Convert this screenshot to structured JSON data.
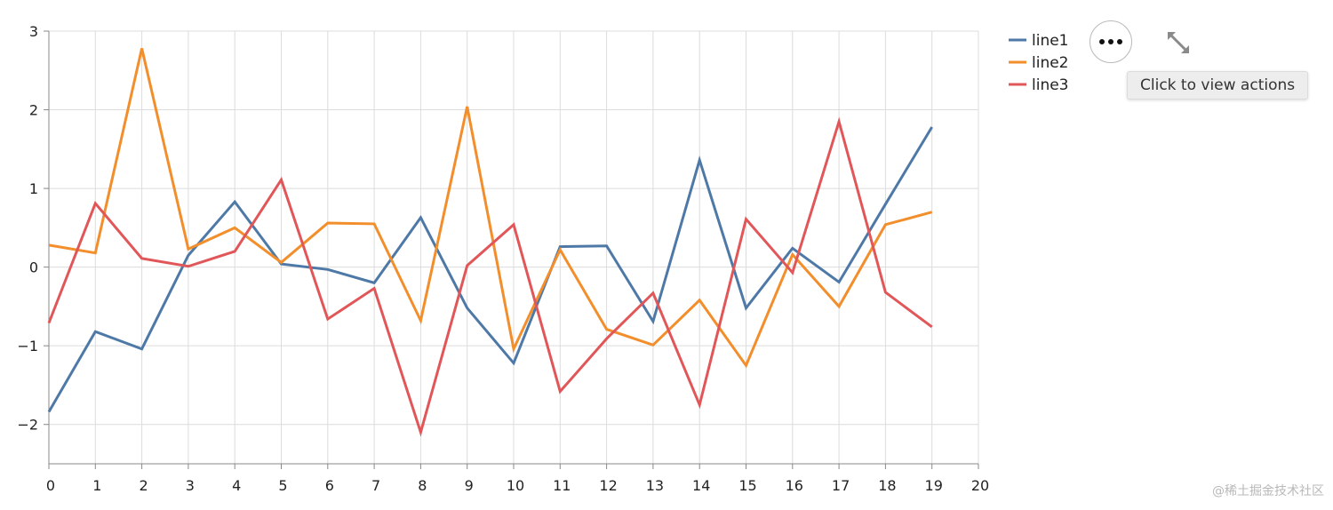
{
  "chart_data": {
    "type": "line",
    "x": [
      0,
      1,
      2,
      3,
      4,
      5,
      6,
      7,
      8,
      9,
      10,
      11,
      12,
      13,
      14,
      15,
      16,
      17,
      18,
      19
    ],
    "series": [
      {
        "name": "line1",
        "color": "#4e79a7",
        "values": [
          -1.84,
          -0.82,
          -1.04,
          0.15,
          0.83,
          0.04,
          -0.03,
          -0.2,
          0.63,
          -0.52,
          -1.22,
          0.26,
          0.27,
          -0.69,
          1.36,
          -0.52,
          0.24,
          -0.19,
          0.8,
          1.78
        ]
      },
      {
        "name": "line2",
        "color": "#f28e2b",
        "values": [
          0.28,
          0.18,
          2.78,
          0.23,
          0.5,
          0.06,
          0.56,
          0.55,
          -0.68,
          2.04,
          -1.04,
          0.22,
          -0.79,
          -0.99,
          -0.42,
          -1.25,
          0.16,
          -0.5,
          0.54,
          0.7
        ]
      },
      {
        "name": "line3",
        "color": "#e15759",
        "values": [
          -0.71,
          0.81,
          0.11,
          0.01,
          0.2,
          1.11,
          -0.66,
          -0.27,
          -2.1,
          0.02,
          0.54,
          -1.58,
          -0.91,
          -0.33,
          -1.75,
          0.61,
          -0.07,
          1.85,
          -0.32,
          -0.76
        ]
      }
    ],
    "xlim": [
      0,
      20
    ],
    "ylim": [
      -2.5,
      3
    ],
    "xticks": [
      "0",
      "1",
      "2",
      "3",
      "4",
      "5",
      "6",
      "7",
      "8",
      "9",
      "10",
      "11",
      "12",
      "13",
      "14",
      "15",
      "16",
      "17",
      "18",
      "19",
      "20"
    ],
    "yticks": [
      "3",
      "2",
      "1",
      "0",
      "−1",
      "−2"
    ],
    "ytick_values": [
      3,
      2,
      1,
      0,
      -1,
      -2
    ],
    "grid": true,
    "legend_position": "top-right"
  },
  "actions": {
    "tooltip": "Click to view actions",
    "more_icon": "more-horizontal-icon",
    "expand_icon": "expand-icon"
  },
  "watermark": "@稀土掘金技术社区"
}
